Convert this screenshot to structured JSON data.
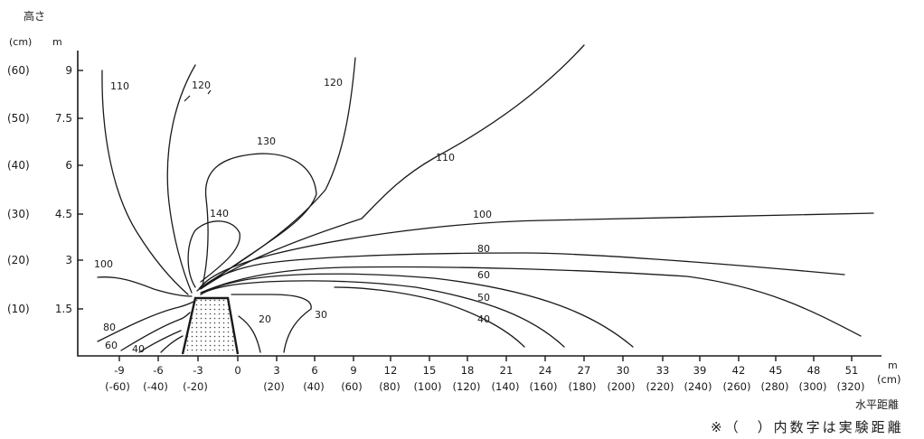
{
  "figure": {
    "y_title": "高さ",
    "y_units_cm": "(cm)",
    "y_units_m": "m",
    "x_units_m": "m",
    "x_units_cm": "(cm)",
    "x_title": "水平距離",
    "note": "※（　）内数字は実験距離"
  },
  "chart_data": {
    "type": "contour",
    "title": "",
    "xlabel": "水平距離",
    "ylabel": "高さ",
    "x_unit": "m",
    "y_unit": "m",
    "x_ticks": [
      "-9",
      "-6",
      "-3",
      "0",
      "3",
      "6",
      "9",
      "12",
      "15",
      "18",
      "21",
      "24",
      "27",
      "30",
      "33",
      "39",
      "42",
      "45",
      "48",
      "51"
    ],
    "x_ticks_cm": [
      "(-60)",
      "(-40)",
      "(-20)",
      "(20)",
      "(40)",
      "(60)",
      "(80)",
      "(100)",
      "(120)",
      "(140)",
      "(160)",
      "(180)",
      "(200)",
      "(220)",
      "(240)",
      "(260)",
      "(280)",
      "(300)",
      "(320)"
    ],
    "y_ticks": [
      "1.5",
      "3",
      "4.5",
      "6",
      "7.5",
      "9"
    ],
    "y_ticks_cm": [
      "(10)",
      "(20)",
      "(30)",
      "(40)",
      "(50)",
      "(60)"
    ],
    "contour_labels": [
      "110",
      "120",
      "120",
      "130",
      "140",
      "110",
      "100",
      "100",
      "80",
      "80",
      "60",
      "60",
      "50",
      "40",
      "40",
      "20",
      "30"
    ]
  }
}
